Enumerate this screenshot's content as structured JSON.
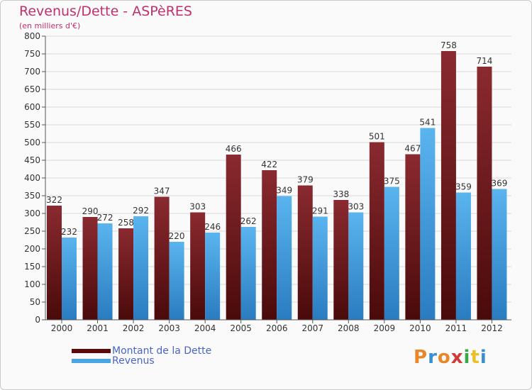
{
  "header": {
    "title": "Revenus/Dette - ASPèRES",
    "subtitle": "(en milliers d'€)"
  },
  "colors": {
    "title": "#c0306a",
    "debt_bar_top": "#8a2a30",
    "debt_bar_bottom": "#4a0a0a",
    "revenue_bar_top": "#5ab4ee",
    "revenue_bar_bottom": "#2a7cc0",
    "legend_text": "#4a64c8"
  },
  "chart_data": {
    "type": "bar",
    "categories": [
      "2000",
      "2001",
      "2002",
      "2003",
      "2004",
      "2005",
      "2006",
      "2007",
      "2008",
      "2009",
      "2010",
      "2011",
      "2012"
    ],
    "series": [
      {
        "name": "Montant de la Dette",
        "values": [
          322,
          290,
          258,
          347,
          303,
          466,
          422,
          379,
          338,
          501,
          467,
          758,
          714
        ]
      },
      {
        "name": "Revenus",
        "values": [
          232,
          272,
          292,
          220,
          246,
          262,
          349,
          291,
          303,
          375,
          541,
          359,
          369
        ]
      }
    ],
    "ylim": [
      0,
      800
    ],
    "yticks": [
      "0",
      "50",
      "100",
      "150",
      "200",
      "250",
      "300",
      "350",
      "400",
      "450",
      "500",
      "550",
      "600",
      "650",
      "700",
      "750",
      "800"
    ],
    "grid": true,
    "legend": "bottom-left",
    "data_labels": true
  },
  "legend": {
    "debt_label": "Montant de la Dette",
    "revenue_label": "Revenus"
  },
  "logo": {
    "text": "Proxiti",
    "letter_colors": [
      "#e8862a",
      "#3a8fd0",
      "#e8862a",
      "#d03a3a",
      "#3aa84a",
      "#e8c02a",
      "#3a8fd0"
    ]
  }
}
